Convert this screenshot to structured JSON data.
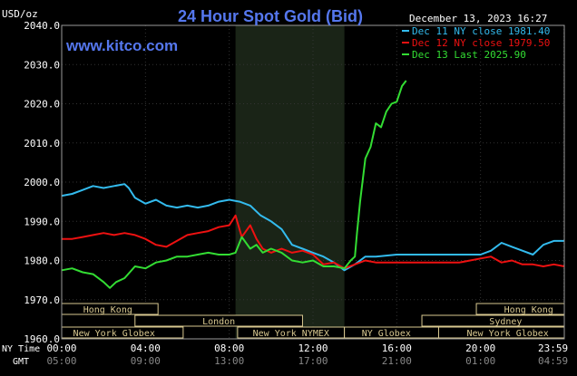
{
  "chart_data": {
    "type": "line",
    "title": "24 Hour Spot Gold (Bid)",
    "unit_label": "USD/oz",
    "source": "www.kitco.com",
    "timestamp": "December 13, 2023 16:27",
    "ylim": [
      1960,
      2040
    ],
    "yticks": [
      "2040.0",
      "2030.0",
      "2020.0",
      "2010.0",
      "2000.0",
      "1990.0",
      "1980.0",
      "1970.0",
      "1960.0"
    ],
    "xlim_hours": [
      0,
      24
    ],
    "row_labels": {
      "ny": "NY Time",
      "gmt": "GMT"
    },
    "ny_ticks": [
      {
        "h": 0,
        "label": "00:00"
      },
      {
        "h": 4,
        "label": "04:00"
      },
      {
        "h": 8,
        "label": "08:00"
      },
      {
        "h": 12,
        "label": "12:00"
      },
      {
        "h": 16,
        "label": "16:00"
      },
      {
        "h": 20,
        "label": "20:00"
      },
      {
        "h": 23.98,
        "label": "23:59"
      }
    ],
    "gmt_ticks": [
      {
        "h": 0,
        "label": "05:00"
      },
      {
        "h": 4,
        "label": "09:00"
      },
      {
        "h": 8,
        "label": "13:00"
      },
      {
        "h": 12,
        "label": "17:00"
      },
      {
        "h": 16,
        "label": "21:00"
      },
      {
        "h": 20,
        "label": "01:00"
      },
      {
        "h": 23.98,
        "label": "04:59"
      }
    ],
    "shaded_window": {
      "start": 8.3,
      "end": 13.5
    },
    "sessions": [
      {
        "name": "Hong Kong",
        "row": 0,
        "segments": [
          [
            0,
            4.6
          ],
          [
            19.8,
            24
          ]
        ],
        "label_at": [
          2.2,
          22.3
        ]
      },
      {
        "name": "London",
        "row": 1,
        "segments": [
          [
            3.5,
            11.5
          ]
        ],
        "label_at": [
          7.5
        ]
      },
      {
        "name": "Sydney",
        "row": 1,
        "segments": [
          [
            17.2,
            24
          ]
        ],
        "label_at": [
          21.2
        ]
      },
      {
        "name": "New York Globex",
        "row": 2,
        "segments": [
          [
            0,
            5.8
          ],
          [
            18,
            24
          ]
        ],
        "label_at": [
          2.5,
          21.3
        ]
      },
      {
        "name": "New York NYMEX",
        "row": 2,
        "segments": [
          [
            8.4,
            13.5
          ]
        ],
        "label_at": [
          10.95
        ]
      },
      {
        "name": "NY Globex",
        "row": 2,
        "segments": [
          [
            13.5,
            18
          ]
        ],
        "label_at": [
          15.5
        ]
      }
    ],
    "series": [
      {
        "name": "Dec 11 NY close 1981.40",
        "color": "#33bbee",
        "x": [
          0,
          0.5,
          1,
          1.5,
          2,
          2.5,
          3,
          3.2,
          3.5,
          4,
          4.5,
          5,
          5.5,
          6,
          6.5,
          7,
          7.5,
          8,
          8.5,
          9,
          9.5,
          10,
          10.5,
          11,
          11.5,
          12,
          12.5,
          13,
          13.5,
          14,
          14.5,
          15,
          16,
          17,
          18,
          19,
          20,
          20.5,
          21,
          21.5,
          22,
          22.5,
          23,
          23.5,
          24
        ],
        "y": [
          1996.5,
          1997,
          1998,
          1999,
          1998.5,
          1999,
          1999.5,
          1998.5,
          1996,
          1994.5,
          1995.5,
          1994,
          1993.5,
          1994,
          1993.5,
          1994,
          1995,
          1995.5,
          1995,
          1994,
          1991.5,
          1990,
          1988,
          1984,
          1983,
          1982,
          1981,
          1979.5,
          1977.5,
          1979,
          1981,
          1981,
          1981.5,
          1981.5,
          1981.5,
          1981.5,
          1981.5,
          1982.5,
          1984.5,
          1983.5,
          1982.5,
          1981.5,
          1984,
          1985,
          1985
        ]
      },
      {
        "name": "Dec 12 NY close 1979.50",
        "color": "#ee1111",
        "x": [
          0,
          0.5,
          1,
          1.5,
          2,
          2.5,
          3,
          3.5,
          4,
          4.5,
          5,
          5.5,
          6,
          6.5,
          7,
          7.5,
          8,
          8.3,
          8.6,
          9,
          9.3,
          9.6,
          10,
          10.5,
          11,
          11.5,
          12,
          12.5,
          13,
          13.5,
          14,
          14.5,
          15,
          16,
          17,
          18,
          19,
          20,
          20.5,
          21,
          21.5,
          22,
          22.5,
          23,
          23.5,
          24
        ],
        "y": [
          1985.5,
          1985.5,
          1986,
          1986.5,
          1987,
          1986.5,
          1987,
          1986.5,
          1985.5,
          1984,
          1983.5,
          1985,
          1986.5,
          1987,
          1987.5,
          1988.5,
          1989,
          1991.5,
          1986,
          1989,
          1985.5,
          1983,
          1982,
          1983,
          1982,
          1982.5,
          1981.5,
          1979,
          1979.5,
          1978,
          1979,
          1980,
          1979.5,
          1979.5,
          1979.5,
          1979.5,
          1979.5,
          1980.5,
          1981,
          1979.5,
          1980,
          1979,
          1979,
          1978.5,
          1979,
          1978.5
        ]
      },
      {
        "name": "Dec 13 Last 2025.90",
        "color": "#33dd33",
        "x": [
          0,
          0.5,
          1,
          1.5,
          2,
          2.3,
          2.6,
          3,
          3.5,
          4,
          4.5,
          5,
          5.5,
          6,
          6.5,
          7,
          7.5,
          8,
          8.3,
          8.6,
          9,
          9.3,
          9.6,
          10,
          10.5,
          11,
          11.5,
          12,
          12.5,
          13,
          13.5,
          13.8,
          14,
          14.1,
          14.25,
          14.5,
          14.75,
          15,
          15.25,
          15.5,
          15.75,
          16,
          16.25,
          16.45
        ],
        "y": [
          1977.5,
          1978,
          1977,
          1976.5,
          1974.5,
          1973,
          1974.5,
          1975.5,
          1978.5,
          1978,
          1979.5,
          1980,
          1981,
          1981,
          1981.5,
          1982,
          1981.5,
          1981.5,
          1982,
          1986,
          1983,
          1984,
          1982,
          1983,
          1982,
          1980,
          1979.5,
          1980,
          1978.5,
          1978.5,
          1978,
          1980,
          1981,
          1987,
          1995,
          2006,
          2009,
          2015,
          2014,
          2018,
          2020,
          2020.5,
          2024.5,
          2025.9
        ]
      }
    ]
  }
}
